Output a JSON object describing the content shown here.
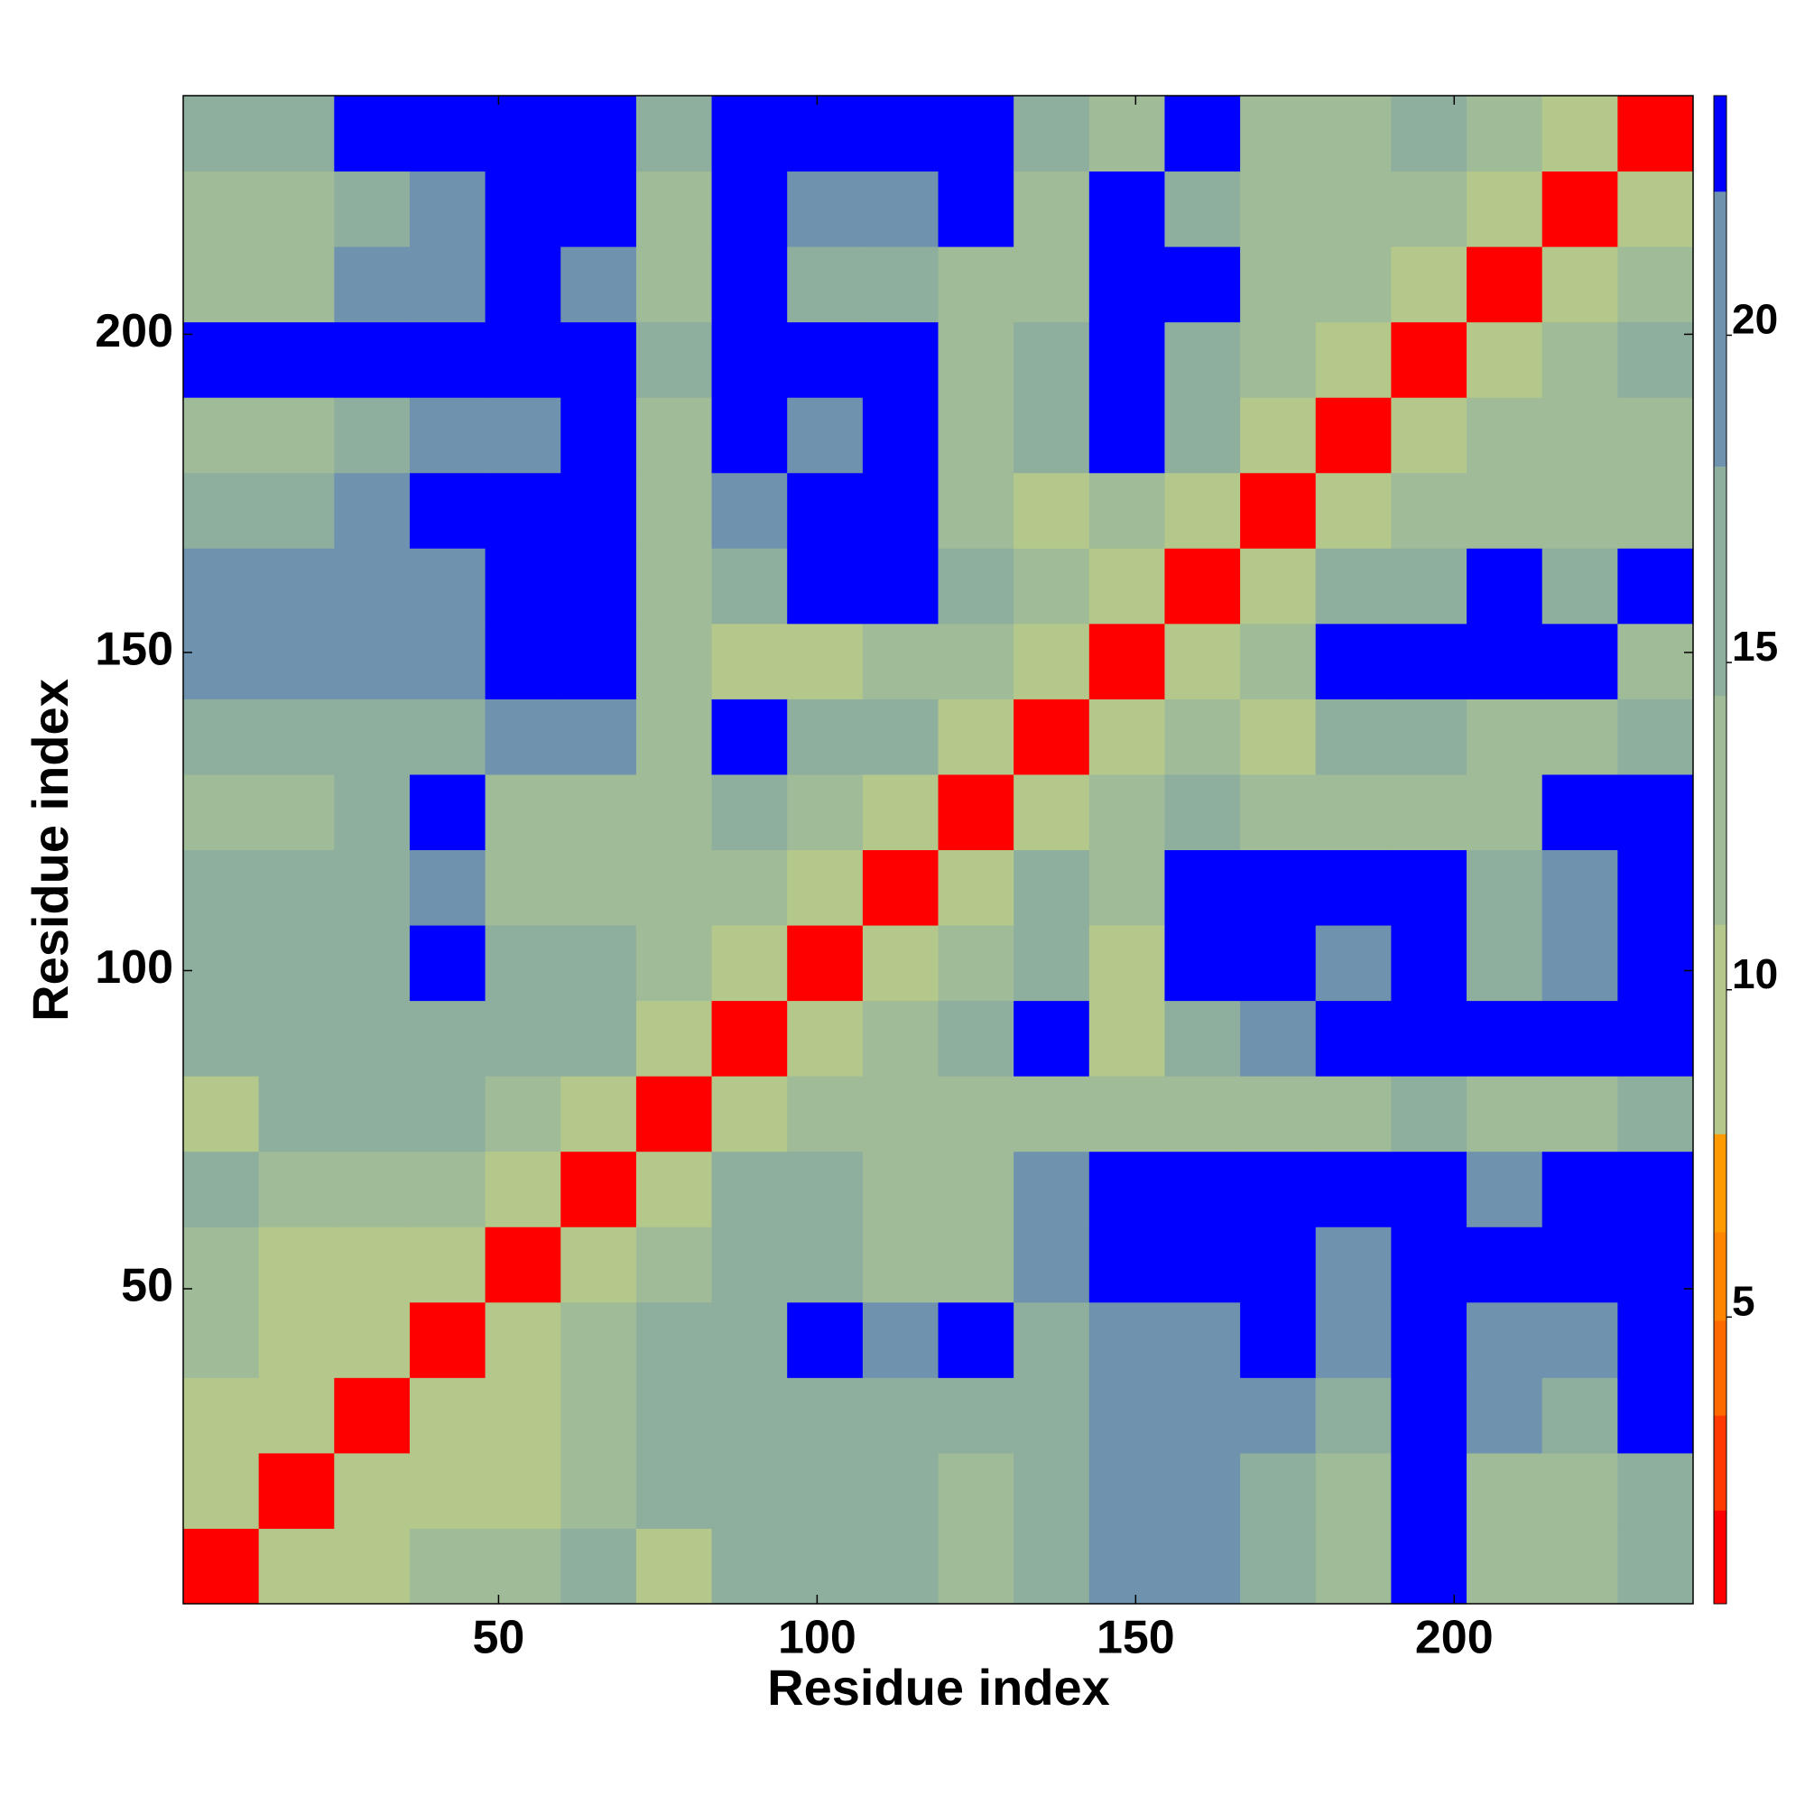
{
  "chart_data": {
    "type": "heatmap",
    "xlabel": "Residue index",
    "ylabel": "Residue index",
    "xlim": [
      0.5,
      237.5
    ],
    "ylim": [
      0.5,
      237.5
    ],
    "xticks": [
      50,
      100,
      150,
      200
    ],
    "yticks": [
      50,
      100,
      150,
      200
    ],
    "bins": [
      0.5,
      12.35,
      24.2,
      36.05,
      47.9,
      59.75,
      71.6,
      83.45,
      95.3,
      107.15,
      119,
      130.85,
      142.7,
      154.55,
      166.4,
      178.25,
      190.1,
      201.95,
      213.8,
      225.65,
      237.5
    ],
    "values": [
      [
        1,
        10,
        10,
        13,
        13,
        16,
        10,
        16,
        16,
        16,
        13,
        16,
        19,
        19,
        16,
        13,
        23,
        13,
        13,
        16
      ],
      [
        10,
        1,
        10,
        10,
        10,
        13,
        16,
        16,
        16,
        16,
        13,
        16,
        19,
        19,
        16,
        13,
        23,
        13,
        13,
        16
      ],
      [
        10,
        10,
        1,
        10,
        10,
        13,
        16,
        16,
        16,
        16,
        16,
        16,
        19,
        19,
        19,
        16,
        23,
        19,
        16,
        23
      ],
      [
        13,
        10,
        10,
        1,
        10,
        13,
        16,
        16,
        23,
        19,
        23,
        16,
        19,
        19,
        23,
        19,
        23,
        19,
        19,
        23
      ],
      [
        13,
        10,
        10,
        10,
        1,
        10,
        13,
        16,
        16,
        13,
        13,
        19,
        23,
        23,
        23,
        19,
        23,
        23,
        23,
        23
      ],
      [
        16,
        13,
        13,
        13,
        10,
        1,
        10,
        16,
        16,
        13,
        13,
        19,
        23,
        23,
        23,
        23,
        23,
        19,
        23,
        23
      ],
      [
        10,
        16,
        16,
        16,
        13,
        10,
        1,
        10,
        13,
        13,
        13,
        13,
        13,
        13,
        13,
        13,
        16,
        13,
        13,
        16
      ],
      [
        16,
        16,
        16,
        16,
        16,
        16,
        10,
        1,
        10,
        13,
        16,
        23,
        10,
        16,
        19,
        23,
        23,
        23,
        23,
        23
      ],
      [
        16,
        16,
        16,
        23,
        16,
        16,
        13,
        10,
        1,
        10,
        13,
        16,
        10,
        23,
        23,
        19,
        23,
        16,
        19,
        23
      ],
      [
        16,
        16,
        16,
        19,
        13,
        13,
        13,
        13,
        10,
        1,
        10,
        16,
        13,
        23,
        23,
        23,
        23,
        16,
        19,
        23
      ],
      [
        13,
        13,
        16,
        23,
        13,
        13,
        13,
        16,
        13,
        10,
        1,
        10,
        13,
        16,
        13,
        13,
        13,
        13,
        23,
        23
      ],
      [
        16,
        16,
        16,
        16,
        19,
        19,
        13,
        23,
        16,
        16,
        10,
        1,
        10,
        13,
        10,
        16,
        16,
        13,
        13,
        16
      ],
      [
        19,
        19,
        19,
        19,
        23,
        23,
        13,
        10,
        10,
        13,
        13,
        10,
        1,
        10,
        13,
        23,
        23,
        23,
        23,
        13
      ],
      [
        19,
        19,
        19,
        19,
        23,
        23,
        13,
        16,
        23,
        23,
        16,
        13,
        10,
        1,
        10,
        16,
        16,
        23,
        16,
        23
      ],
      [
        16,
        16,
        19,
        23,
        23,
        23,
        13,
        19,
        23,
        23,
        13,
        10,
        13,
        10,
        1,
        10,
        13,
        13,
        13,
        13
      ],
      [
        13,
        13,
        16,
        19,
        19,
        23,
        13,
        23,
        19,
        23,
        13,
        16,
        23,
        16,
        10,
        1,
        10,
        13,
        13,
        13
      ],
      [
        23,
        23,
        23,
        23,
        23,
        23,
        16,
        23,
        23,
        23,
        13,
        16,
        23,
        16,
        13,
        10,
        1,
        10,
        13,
        16
      ],
      [
        13,
        13,
        19,
        19,
        23,
        19,
        13,
        23,
        16,
        16,
        13,
        13,
        23,
        23,
        13,
        13,
        10,
        1,
        10,
        13
      ],
      [
        13,
        13,
        16,
        19,
        23,
        23,
        13,
        23,
        19,
        19,
        23,
        13,
        23,
        16,
        13,
        13,
        13,
        10,
        1,
        10
      ],
      [
        16,
        16,
        23,
        23,
        23,
        23,
        16,
        23,
        23,
        23,
        23,
        16,
        13,
        23,
        13,
        13,
        16,
        13,
        10,
        1
      ]
    ],
    "colorbar": {
      "clim": [
        0.62,
        23.66
      ],
      "ticks": [
        5,
        10,
        15,
        20
      ],
      "bounds": [
        2.05,
        3.5,
        4.95,
        6.3,
        7.8,
        11,
        14.5,
        18,
        22.2
      ],
      "colors": [
        "#ff0000",
        "#ff3a00",
        "#ff6a00",
        "#ff8500",
        "#ff9a00",
        "#b4c88c",
        "#a0bb97",
        "#8eae9e",
        "#6f93ae",
        "#0000ff"
      ]
    }
  }
}
